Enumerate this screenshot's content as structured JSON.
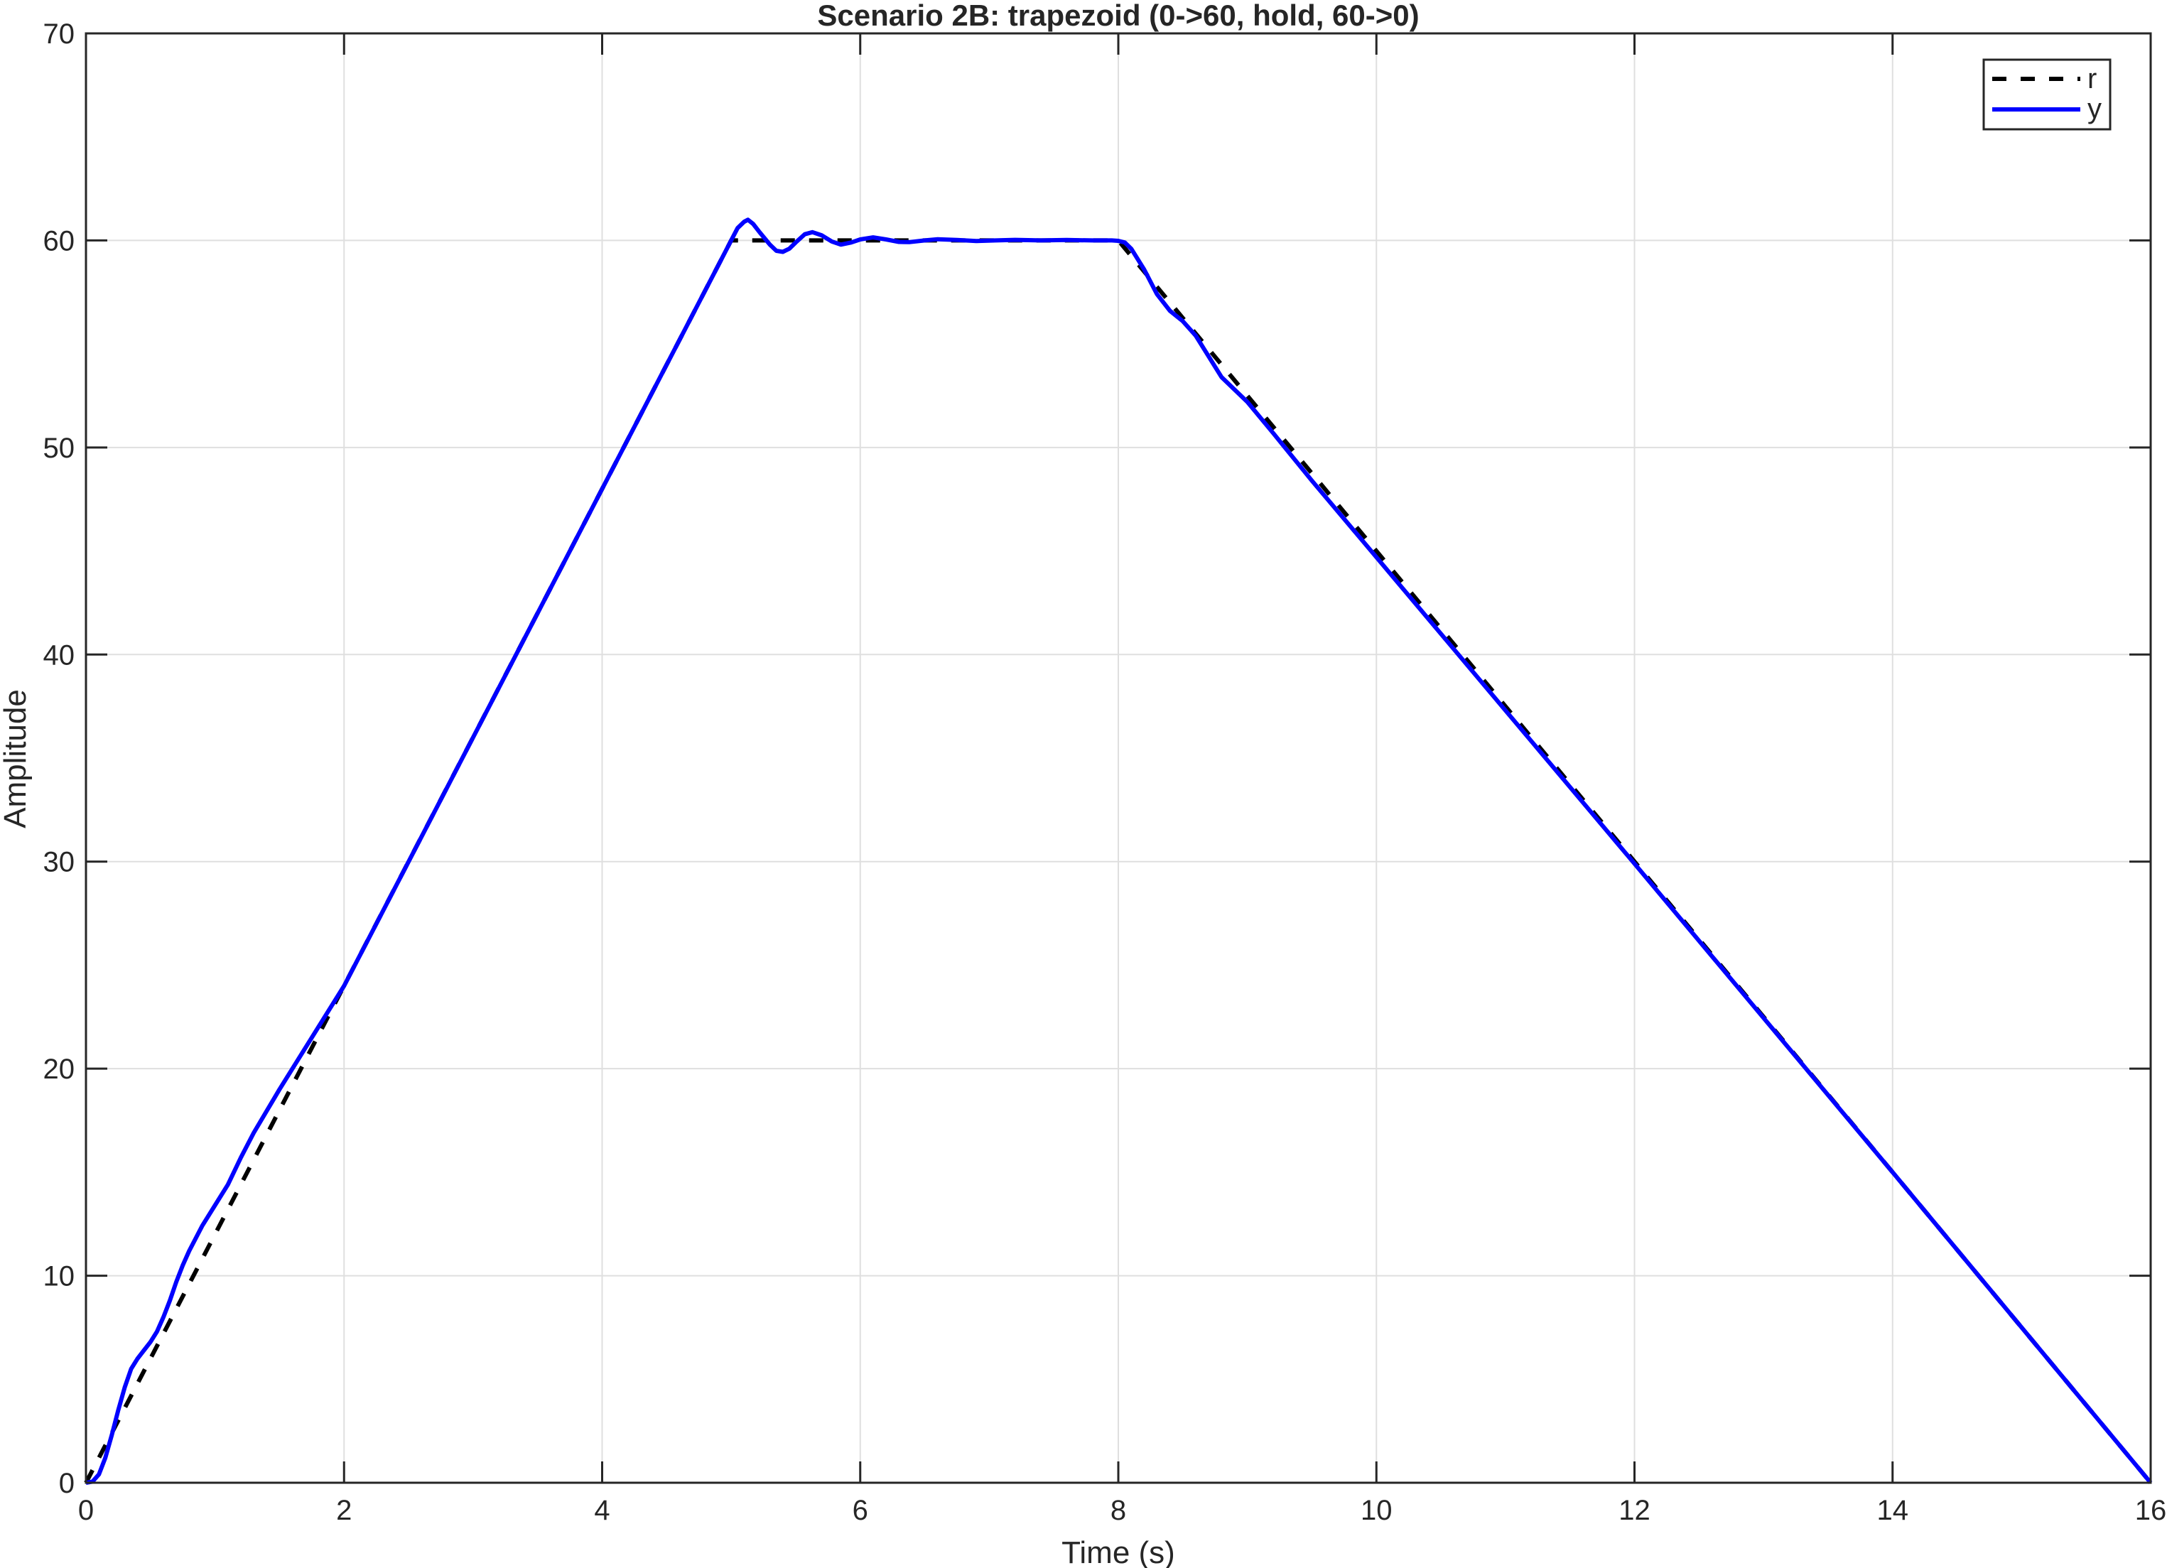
{
  "chart_data": {
    "type": "line",
    "title": "Scenario 2B: trapezoid (0->60, hold, 60->0)",
    "xlabel": "Time (s)",
    "ylabel": "Amplitude",
    "xlim": [
      0,
      16
    ],
    "ylim": [
      0,
      70
    ],
    "xticks": [
      0,
      2,
      4,
      6,
      8,
      10,
      12,
      14,
      16
    ],
    "yticks": [
      0,
      10,
      20,
      30,
      40,
      50,
      60,
      70
    ],
    "xtick_labels": [
      "0",
      "2",
      "4",
      "6",
      "8",
      "10",
      "12",
      "14",
      "16"
    ],
    "ytick_labels": [
      "0",
      "10",
      "20",
      "30",
      "40",
      "50",
      "60",
      "70"
    ],
    "grid": true,
    "legend_position": "top-right",
    "series": [
      {
        "name": "r",
        "color": "#000000",
        "style": "dashed",
        "x": [
          0,
          5,
          8,
          16
        ],
        "y": [
          0,
          60,
          60,
          0
        ]
      },
      {
        "name": "y",
        "color": "#0000ff",
        "style": "solid",
        "x": [
          0,
          0.05,
          0.1,
          0.15,
          0.2,
          0.25,
          0.3,
          0.35,
          0.4,
          0.45,
          0.5,
          0.55,
          0.6,
          0.65,
          0.7,
          0.75,
          0.8,
          0.85,
          0.9,
          1.0,
          1.1,
          1.2,
          1.3,
          1.5,
          2.0,
          3.0,
          4.0,
          4.5,
          4.8,
          4.9,
          5.0,
          5.05,
          5.1,
          5.13,
          5.17,
          5.22,
          5.3,
          5.35,
          5.4,
          5.45,
          5.5,
          5.57,
          5.63,
          5.7,
          5.78,
          5.85,
          5.93,
          6.0,
          6.1,
          6.2,
          6.3,
          6.38,
          6.5,
          6.6,
          6.75,
          6.9,
          7.05,
          7.2,
          7.4,
          7.6,
          7.8,
          7.95,
          8.0,
          8.05,
          8.1,
          8.2,
          8.3,
          8.4,
          8.5,
          8.6,
          8.7,
          8.8,
          8.9,
          9.0,
          9.2,
          9.5,
          10,
          12,
          14,
          16
        ],
        "y": [
          0,
          0.05,
          0.4,
          1.2,
          2.3,
          3.5,
          4.6,
          5.5,
          6.0,
          6.4,
          6.8,
          7.3,
          8.0,
          8.8,
          9.7,
          10.5,
          11.2,
          11.8,
          12.4,
          13.4,
          14.4,
          15.7,
          16.9,
          19.0,
          24.0,
          36.0,
          48.0,
          54.0,
          57.6,
          58.8,
          60.0,
          60.6,
          60.9,
          61.0,
          60.8,
          60.4,
          59.8,
          59.5,
          59.45,
          59.6,
          59.9,
          60.3,
          60.4,
          60.25,
          59.95,
          59.8,
          59.9,
          60.05,
          60.15,
          60.05,
          59.93,
          59.92,
          60.0,
          60.06,
          60.02,
          59.97,
          60.0,
          60.03,
          60.0,
          60.02,
          60.0,
          60.0,
          59.98,
          59.9,
          59.6,
          58.6,
          57.4,
          56.6,
          56.1,
          55.4,
          54.4,
          53.4,
          52.8,
          52.2,
          50.7,
          48.4,
          44.7,
          29.9,
          15.0,
          0
        ]
      }
    ]
  }
}
